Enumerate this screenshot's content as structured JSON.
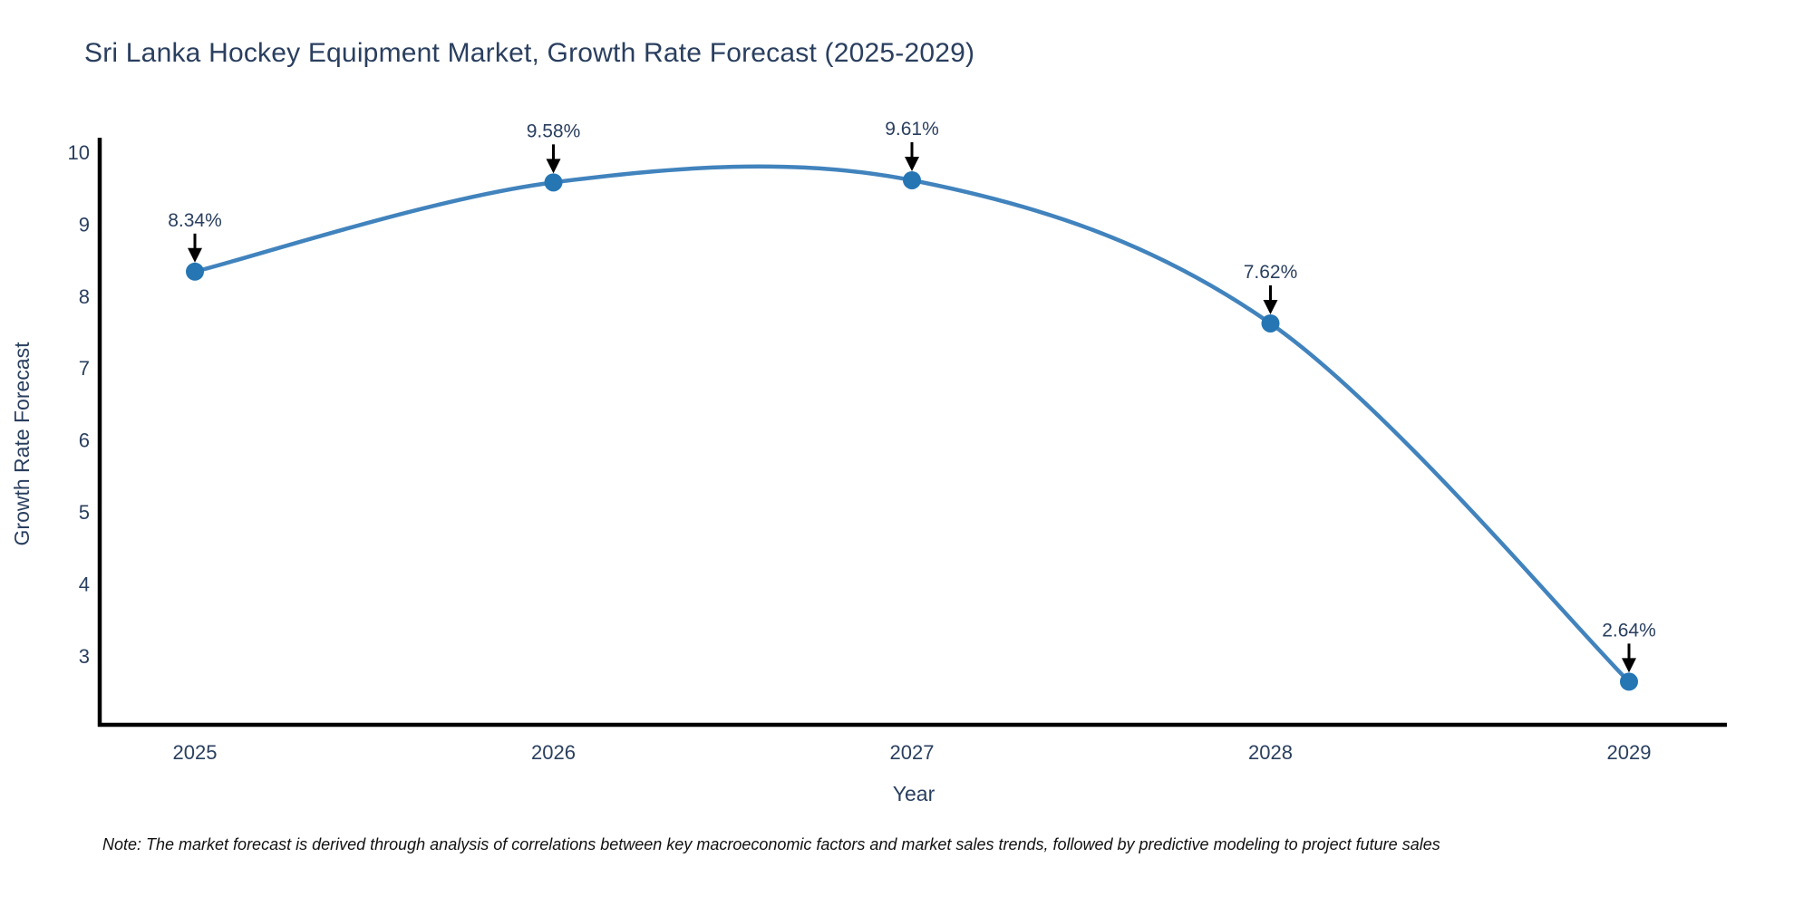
{
  "header": {
    "title": "Sri Lanka Hockey Equipment Market, Growth Rate Forecast (2025-2029)"
  },
  "footnote": {
    "text": "Note: The market forecast is derived through analysis of correlations between key macroeconomic factors and market sales trends, followed by predictive modeling to project future sales"
  },
  "chart_data": {
    "type": "line",
    "title": "Sri Lanka Hockey Equipment Market, Growth Rate Forecast (2025-2029)",
    "xlabel": "Year",
    "ylabel": "Growth Rate Forecast",
    "x": [
      2025,
      2026,
      2027,
      2028,
      2029
    ],
    "values": [
      8.34,
      9.58,
      9.61,
      7.62,
      2.64
    ],
    "point_labels": [
      "8.34%",
      "9.58%",
      "9.61%",
      "7.62%",
      "2.64%"
    ],
    "y_ticks": [
      3,
      4,
      5,
      6,
      7,
      8,
      9,
      10
    ],
    "ylim": [
      1.9,
      10.2
    ],
    "line_shape": "spline",
    "grid": false,
    "legend": "none",
    "colors": {
      "line": "#4183bd",
      "marker": "#2676b4",
      "axis": "#000000",
      "text": "#2a3f5f",
      "annotation_arrow": "#000000",
      "note_text": "#111111",
      "background": "#ffffff"
    }
  }
}
